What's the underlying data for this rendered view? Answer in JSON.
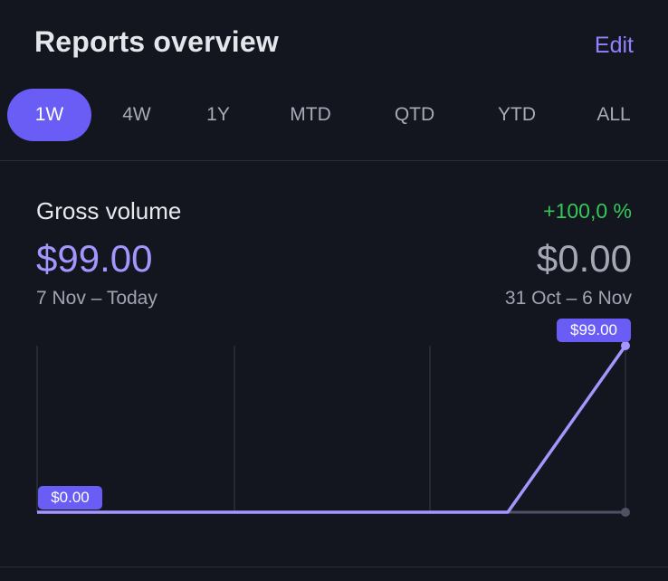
{
  "header": {
    "title": "Reports overview",
    "edit_label": "Edit"
  },
  "tabs": [
    {
      "label": "1W",
      "active": true
    },
    {
      "label": "4W",
      "active": false
    },
    {
      "label": "1Y",
      "active": false
    },
    {
      "label": "MTD",
      "active": false
    },
    {
      "label": "QTD",
      "active": false
    },
    {
      "label": "YTD",
      "active": false
    },
    {
      "label": "ALL",
      "active": false
    }
  ],
  "metric": {
    "label": "Gross volume",
    "change": "+100,0 %",
    "current_value": "$99.00",
    "current_range": "7 Nov – Today",
    "previous_value": "$0.00",
    "previous_range": "31 Oct – 6 Nov"
  },
  "colors": {
    "accent": "#6a5df6",
    "line_current": "#a397ff",
    "line_previous": "#4e5364",
    "positive": "#34c759"
  },
  "chart_data": {
    "type": "line",
    "ylim": [
      0,
      99
    ],
    "series": [
      {
        "values": [
          0,
          0,
          0,
          0,
          0,
          99
        ]
      },
      {
        "values": [
          0,
          0,
          0,
          0,
          0,
          0
        ]
      }
    ],
    "data_labels": [
      "$0.00",
      "$99.00"
    ]
  }
}
